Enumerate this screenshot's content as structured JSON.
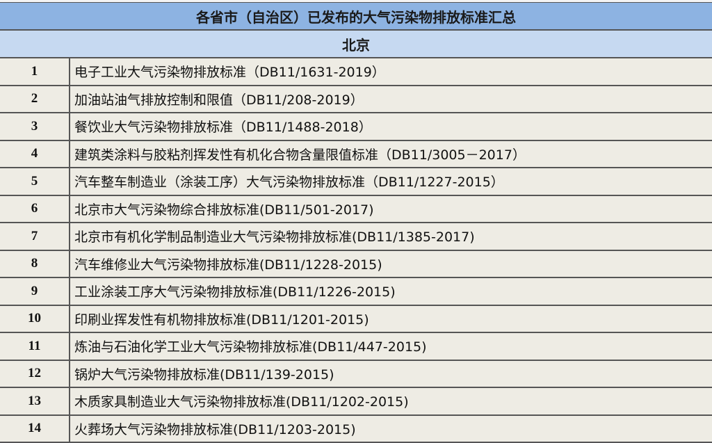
{
  "title": "各省市（自治区）已发布的大气污染物排放标准汇总",
  "section": "北京",
  "rows": [
    {
      "no": "1",
      "name": "电子工业大气污染物排放标准（DB11/1631-2019）"
    },
    {
      "no": "2",
      "name": "加油站油气排放控制和限值（DB11/208-2019）"
    },
    {
      "no": "3",
      "name": "餐饮业大气污染物排放标准（DB11/1488-2018）"
    },
    {
      "no": "4",
      "name": "建筑类涂料与胶粘剂挥发性有机化合物含量限值标准（DB11/3005－2017）"
    },
    {
      "no": "5",
      "name": "汽车整车制造业（涂装工序）大气污染物排放标准（DB11/1227-2015）"
    },
    {
      "no": "6",
      "name": "北京市大气污染物综合排放标准(DB11/501-2017)"
    },
    {
      "no": "7",
      "name": "北京市有机化学制品制造业大气污染物排放标准(DB11/1385-2017)"
    },
    {
      "no": "8",
      "name": "汽车维修业大气污染物排放标准(DB11/1228-2015)"
    },
    {
      "no": "9",
      "name": "工业涂装工序大气污染物排放标准(DB11/1226-2015)"
    },
    {
      "no": "10",
      "name": "印刷业挥发性有机物排放标准(DB11/1201-2015)"
    },
    {
      "no": "11",
      "name": "炼油与石油化学工业大气污染物排放标准(DB11/447-2015)"
    },
    {
      "no": "12",
      "name": "锅炉大气污染物排放标准(DB11/139-2015)"
    },
    {
      "no": "13",
      "name": "木质家具制造业大气污染物排放标准(DB11/1202-2015)"
    },
    {
      "no": "14",
      "name": "火葬场大气污染物排放标准(DB11/1203-2015)"
    }
  ]
}
